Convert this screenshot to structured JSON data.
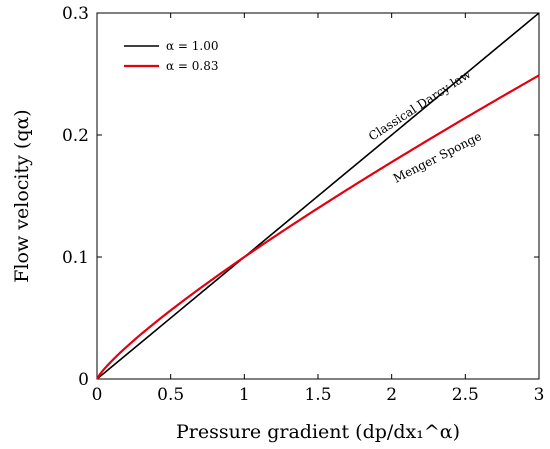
{
  "chart_data": {
    "type": "line",
    "xlabel": "Pressure gradient (dp/dx₁^α)",
    "ylabel": "Flow velocity (qα)",
    "xlim": [
      0,
      3
    ],
    "ylim": [
      0,
      0.3
    ],
    "x_ticks": [
      "0",
      "0.5",
      "1",
      "1.5",
      "2",
      "2.5",
      "3"
    ],
    "y_ticks": [
      "0",
      "0.1",
      "0.2",
      "0.3"
    ],
    "legend_position": "top-left",
    "grid": false,
    "series": [
      {
        "name": "α = 1.00",
        "color": "#000000",
        "formula": "q = 0.1 * x^1.00",
        "x": [
          0,
          0.5,
          1,
          1.5,
          2,
          2.5,
          3
        ],
        "values": [
          0,
          0.05,
          0.1,
          0.15,
          0.2,
          0.25,
          0.3
        ]
      },
      {
        "name": "α = 0.83",
        "color": "#e3000f",
        "formula": "q = 0.1 * x^0.83",
        "x": [
          0,
          0.5,
          1,
          1.5,
          2,
          2.5,
          3
        ],
        "values": [
          0,
          0.0563,
          0.1,
          0.14,
          0.178,
          0.214,
          0.249
        ]
      }
    ],
    "annotations": [
      {
        "text": "Classical Darcy law",
        "series": 0
      },
      {
        "text": "Menger Sponge",
        "series": 1
      }
    ]
  }
}
